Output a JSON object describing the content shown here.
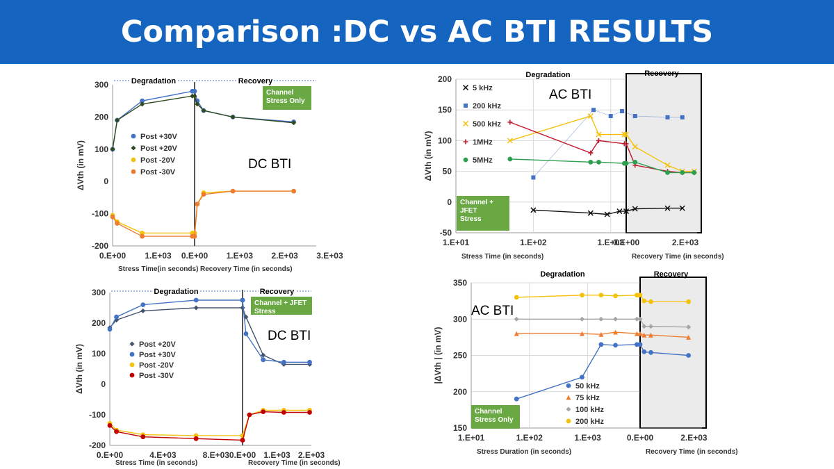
{
  "header": {
    "title": "Comparison :DC vs AC BTI RESULTS"
  },
  "chart_data": [
    {
      "id": "c1",
      "type": "line",
      "annotation": "DC BTI",
      "note_box": [
        "Channel",
        "Stress Only"
      ],
      "phase_labels": [
        "Degradation",
        "Recovery"
      ],
      "ylabel": "ΔVth (in mV)",
      "xlabel_left": "Stress Time(in seconds)",
      "xlabel_right": "Recovery Time (in seconds)",
      "ylim": [
        -200,
        300
      ],
      "yticks": [
        "300",
        "200",
        "100",
        "0",
        "-100",
        "-200"
      ],
      "xticks_left": [
        "0.E+00",
        "1.E+03"
      ],
      "xticks_right": [
        "0.E+00",
        "1.E+03",
        "2.E+03",
        "3.E+03"
      ],
      "stress_xlim": [
        0,
        1800
      ],
      "recovery_xlim": [
        0,
        2700
      ],
      "legend": [
        "Post +30V",
        "Post +20V",
        "Post -20V",
        "Post -30V"
      ],
      "series": [
        {
          "name": "Post +30V",
          "color": "#4472c4",
          "marker": "circle",
          "stress": [
            [
              0,
              100
            ],
            [
              100,
              190
            ],
            [
              650,
              250
            ],
            [
              1750,
              280
            ]
          ],
          "recovery": [
            [
              0,
              280
            ],
            [
              60,
              250
            ],
            [
              200,
              220
            ],
            [
              850,
              200
            ],
            [
              2200,
              185
            ]
          ]
        },
        {
          "name": "Post +20V",
          "color": "#2e4a1e",
          "marker": "diamond",
          "stress": [
            [
              0,
              100
            ],
            [
              100,
              190
            ],
            [
              650,
              240
            ],
            [
              1750,
              265
            ]
          ],
          "recovery": [
            [
              0,
              265
            ],
            [
              60,
              240
            ],
            [
              200,
              220
            ],
            [
              850,
              200
            ],
            [
              2200,
              182
            ]
          ]
        },
        {
          "name": "Post -20V",
          "color": "#f4c20d",
          "marker": "circle",
          "stress": [
            [
              0,
              -105
            ],
            [
              100,
              -125
            ],
            [
              650,
              -160
            ],
            [
              1750,
              -160
            ]
          ],
          "recovery": [
            [
              0,
              -160
            ],
            [
              60,
              -70
            ],
            [
              200,
              -35
            ],
            [
              850,
              -30
            ],
            [
              2200,
              -30
            ]
          ]
        },
        {
          "name": "Post -30V",
          "color": "#ed7d31",
          "marker": "circle",
          "stress": [
            [
              0,
              -110
            ],
            [
              100,
              -130
            ],
            [
              650,
              -170
            ],
            [
              1750,
              -170
            ]
          ],
          "recovery": [
            [
              0,
              -170
            ],
            [
              60,
              -70
            ],
            [
              200,
              -40
            ],
            [
              850,
              -30
            ],
            [
              2200,
              -30
            ]
          ]
        }
      ]
    },
    {
      "id": "c2",
      "type": "line",
      "annotation": "DC BTI",
      "note_box": [
        "Channel + JFET",
        "Stress"
      ],
      "phase_labels": [
        "Degradation",
        "Recovery"
      ],
      "ylabel": "ΔVth (in mV)",
      "xlabel_left": "Stress Time (in seconds)",
      "xlabel_right": "Recovery Time (in seconds)",
      "ylim": [
        -200,
        300
      ],
      "yticks": [
        "300",
        "200",
        "100",
        "0",
        "-100",
        "-200"
      ],
      "xticks_left": [
        "0.E+00",
        "4.E+03",
        "8.E+03"
      ],
      "xticks_right": [
        "0.E+00",
        "1.E+03",
        "2.E+03"
      ],
      "stress_xlim": [
        0,
        10000
      ],
      "recovery_xlim": [
        0,
        2000
      ],
      "legend": [
        "Post +20V",
        "Post +30V",
        "Post -20V",
        "Post -30V"
      ],
      "series": [
        {
          "name": "Post +20V",
          "color": "#44546a",
          "marker": "diamond",
          "stress": [
            [
              0,
              185
            ],
            [
              500,
              210
            ],
            [
              2500,
              240
            ],
            [
              6500,
              250
            ],
            [
              10000,
              250
            ]
          ],
          "recovery": [
            [
              0,
              250
            ],
            [
              100,
              220
            ],
            [
              600,
              95
            ],
            [
              1200,
              65
            ],
            [
              1950,
              65
            ]
          ]
        },
        {
          "name": "Post +30V",
          "color": "#4472c4",
          "marker": "circle",
          "stress": [
            [
              0,
              180
            ],
            [
              500,
              220
            ],
            [
              2500,
              260
            ],
            [
              6500,
              275
            ],
            [
              10000,
              275
            ]
          ],
          "recovery": [
            [
              0,
              275
            ],
            [
              100,
              165
            ],
            [
              600,
              80
            ],
            [
              1200,
              72
            ],
            [
              1950,
              72
            ]
          ]
        },
        {
          "name": "Post -20V",
          "color": "#f4c20d",
          "marker": "circle",
          "stress": [
            [
              0,
              -128
            ],
            [
              500,
              -150
            ],
            [
              2500,
              -165
            ],
            [
              6500,
              -168
            ],
            [
              10000,
              -168
            ]
          ],
          "recovery": [
            [
              0,
              -168
            ],
            [
              200,
              -100
            ],
            [
              600,
              -85
            ],
            [
              1200,
              -85
            ],
            [
              1950,
              -85
            ]
          ]
        },
        {
          "name": "Post -30V",
          "color": "#c00000",
          "marker": "circle",
          "stress": [
            [
              0,
              -135
            ],
            [
              500,
              -155
            ],
            [
              2500,
              -172
            ],
            [
              6500,
              -178
            ],
            [
              10000,
              -183
            ]
          ],
          "recovery": [
            [
              0,
              -183
            ],
            [
              200,
              -100
            ],
            [
              600,
              -90
            ],
            [
              1200,
              -92
            ],
            [
              1950,
              -92
            ]
          ]
        }
      ]
    },
    {
      "id": "c3",
      "type": "line",
      "annotation": "AC BTI",
      "note_box": [
        "Channel +",
        "JFET",
        "Stress"
      ],
      "phase_labels": [
        "Degradation",
        "Recovery"
      ],
      "ylabel": "ΔVth (in mV)",
      "xlabel_left": "Stress Time (in seconds)",
      "xlabel_right": "Recovery Time (in seconds)",
      "ylim": [
        -50,
        200
      ],
      "yticks": [
        "200",
        "150",
        "100",
        "50",
        "0",
        "-50"
      ],
      "xticks_left": [
        "1.E+01",
        "1.E+02",
        "1.E+03"
      ],
      "xticks_right": [
        "0.E+00",
        "2.E+03"
      ],
      "stress_log_decades": [
        1,
        3.2
      ],
      "recovery_xlim": [
        0,
        2400
      ],
      "legend": [
        "5 kHz",
        "200 kHz",
        "500 kHz",
        "1MHz",
        "5MHz"
      ],
      "series": [
        {
          "name": "5 kHz",
          "color": "#111111",
          "marker": "x",
          "stress": [
            [
              100,
              -13
            ],
            [
              550,
              -18
            ],
            [
              900,
              -20
            ],
            [
              1300,
              -15
            ]
          ],
          "recovery": [
            [
              0,
              -15
            ],
            [
              300,
              -11
            ],
            [
              1400,
              -10
            ],
            [
              1900,
              -10
            ]
          ]
        },
        {
          "name": "200 kHz",
          "color": "#4472c4",
          "marker": "square",
          "light_line": true,
          "stress": [
            [
              100,
              40
            ],
            [
              600,
              150
            ],
            [
              1000,
              140
            ],
            [
              1400,
              148
            ]
          ],
          "recovery": [
            [
              300,
              140
            ],
            [
              1400,
              138
            ],
            [
              1900,
              138
            ]
          ]
        },
        {
          "name": "500 kHz",
          "color": "#f4c20d",
          "marker": "x",
          "stress": [
            [
              50,
              100
            ],
            [
              550,
              140
            ],
            [
              700,
              110
            ],
            [
              1500,
              110
            ]
          ],
          "recovery": [
            [
              0,
              110
            ],
            [
              300,
              90
            ],
            [
              1400,
              60
            ],
            [
              1900,
              50
            ],
            [
              2300,
              50
            ]
          ]
        },
        {
          "name": "1MHz",
          "color": "#c0182b",
          "marker": "plus",
          "stress": [
            [
              50,
              130
            ],
            [
              550,
              80
            ],
            [
              700,
              100
            ],
            [
              1500,
              95
            ]
          ],
          "recovery": [
            [
              0,
              95
            ],
            [
              300,
              60
            ],
            [
              1400,
              50
            ],
            [
              1900,
              48
            ],
            [
              2300,
              48
            ]
          ]
        },
        {
          "name": "5MHz",
          "color": "#2ca050",
          "marker": "circle",
          "stress": [
            [
              50,
              70
            ],
            [
              550,
              65
            ],
            [
              700,
              65
            ],
            [
              1500,
              63
            ]
          ],
          "recovery": [
            [
              0,
              63
            ],
            [
              300,
              65
            ],
            [
              1400,
              48
            ],
            [
              1900,
              48
            ],
            [
              2300,
              48
            ]
          ]
        }
      ]
    },
    {
      "id": "c4",
      "type": "line",
      "annotation": "AC BTI",
      "note_box": [
        "Channel",
        "Stress Only"
      ],
      "phase_labels": [
        "Degradation",
        "Recovery"
      ],
      "ylabel": "|ΔVth | (in mV)",
      "xlabel_left": "Stress Duration (in seconds)",
      "xlabel_right": "Recovery Time (in seconds)",
      "ylim": [
        150,
        350
      ],
      "yticks": [
        "350",
        "300",
        "250",
        "200",
        "150"
      ],
      "xticks_left": [
        "1.E+01",
        "1.E+02",
        "1.E+03"
      ],
      "xticks_right": [
        "0.E+00",
        "2.E+03"
      ],
      "stress_log_decades": [
        1,
        3.9
      ],
      "recovery_xlim": [
        0,
        2300
      ],
      "legend": [
        "50 kHz",
        "75 kHz",
        "100 kHz",
        "200 kHz"
      ],
      "series": [
        {
          "name": "50 kHz",
          "color": "#4472c4",
          "marker": "circle",
          "stress": [
            [
              60,
              190
            ],
            [
              800,
              220
            ],
            [
              1700,
              265
            ],
            [
              3000,
              264
            ],
            [
              7000,
              265
            ]
          ],
          "recovery": [
            [
              0,
              265
            ],
            [
              150,
              255
            ],
            [
              400,
              254
            ],
            [
              1800,
              250
            ]
          ]
        },
        {
          "name": "75 kHz",
          "color": "#ed7d31",
          "marker": "triangle",
          "stress": [
            [
              60,
              280
            ],
            [
              800,
              280
            ],
            [
              1700,
              279
            ],
            [
              3000,
              282
            ],
            [
              7000,
              280
            ]
          ],
          "recovery": [
            [
              0,
              280
            ],
            [
              150,
              278
            ],
            [
              400,
              278
            ],
            [
              1800,
              275
            ]
          ]
        },
        {
          "name": "100 kHz",
          "color": "#a5a5a5",
          "marker": "diamond",
          "stress": [
            [
              60,
              300
            ],
            [
              800,
              300
            ],
            [
              1700,
              300
            ],
            [
              3000,
              300
            ],
            [
              7000,
              300
            ]
          ],
          "recovery": [
            [
              0,
              300
            ],
            [
              150,
              290
            ],
            [
              400,
              290
            ],
            [
              1800,
              289
            ]
          ]
        },
        {
          "name": "200 kHz",
          "color": "#f4c20d",
          "marker": "circle",
          "stress": [
            [
              60,
              330
            ],
            [
              800,
              333
            ],
            [
              1700,
              333
            ],
            [
              3000,
              332
            ],
            [
              7000,
              333
            ]
          ],
          "recovery": [
            [
              0,
              333
            ],
            [
              150,
              325
            ],
            [
              400,
              324
            ],
            [
              1800,
              324
            ]
          ]
        }
      ]
    }
  ]
}
